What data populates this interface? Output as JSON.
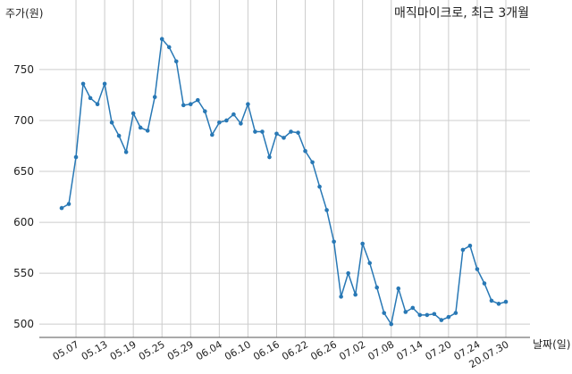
{
  "chart_data": {
    "type": "line",
    "title": "매직마이크로, 최근 3개월",
    "ylabel": "주가(원)",
    "xlabel": "날짜(일)",
    "ylim": [
      487,
      792
    ],
    "yticks": [
      500,
      550,
      600,
      650,
      700,
      750
    ],
    "grid": true,
    "color": "#2878b5",
    "x": [
      "05.04",
      "05.06",
      "05.07",
      "05.08",
      "05.11",
      "05.12",
      "05.13",
      "05.14",
      "05.15",
      "05.18",
      "05.19",
      "05.20",
      "05.21",
      "05.22",
      "05.25",
      "05.26",
      "05.27",
      "05.28",
      "05.29",
      "06.01",
      "06.02",
      "06.03",
      "06.04",
      "06.05",
      "06.08",
      "06.09",
      "06.10",
      "06.11",
      "06.12",
      "06.15",
      "06.16",
      "06.17",
      "06.18",
      "06.19",
      "06.22",
      "06.23",
      "06.24",
      "06.25",
      "06.26",
      "06.29",
      "06.30",
      "07.01",
      "07.02",
      "07.03",
      "07.06",
      "07.07",
      "07.08",
      "07.09",
      "07.10",
      "07.13",
      "07.14",
      "07.15",
      "07.16",
      "07.17",
      "07.20",
      "07.21",
      "07.22",
      "07.23",
      "07.24",
      "07.27",
      "07.28",
      "07.29",
      "07.30"
    ],
    "values": [
      614,
      618,
      664,
      736,
      722,
      716,
      736,
      698,
      685,
      669,
      707,
      693,
      690,
      723,
      780,
      772,
      758,
      715,
      716,
      720,
      709,
      686,
      698,
      700,
      706,
      697,
      716,
      689,
      689,
      664,
      687,
      683,
      689,
      688,
      670,
      659,
      635,
      612,
      581,
      527,
      550,
      529,
      579,
      560,
      536,
      511,
      500,
      535,
      512,
      516,
      509,
      509,
      510,
      504,
      507,
      511,
      573,
      577,
      554,
      540,
      523,
      520,
      522
    ],
    "xticks": [
      {
        "label": "05.07",
        "at": "05.07"
      },
      {
        "label": "05.13",
        "at": "05.13"
      },
      {
        "label": "05.19",
        "at": "05.19"
      },
      {
        "label": "05.25",
        "at": "05.25"
      },
      {
        "label": "05.29",
        "at": "05.29"
      },
      {
        "label": "06.04",
        "at": "06.04"
      },
      {
        "label": "06.10",
        "at": "06.10"
      },
      {
        "label": "06.16",
        "at": "06.16"
      },
      {
        "label": "06.22",
        "at": "06.22"
      },
      {
        "label": "06.26",
        "at": "06.26"
      },
      {
        "label": "07.02",
        "at": "07.02"
      },
      {
        "label": "07.08",
        "at": "07.08"
      },
      {
        "label": "07.14",
        "at": "07.14"
      },
      {
        "label": "07.20",
        "at": "07.20"
      },
      {
        "label": "07.24",
        "at": "07.24"
      },
      {
        "label": "20.07.30",
        "at": "07.30"
      }
    ]
  }
}
